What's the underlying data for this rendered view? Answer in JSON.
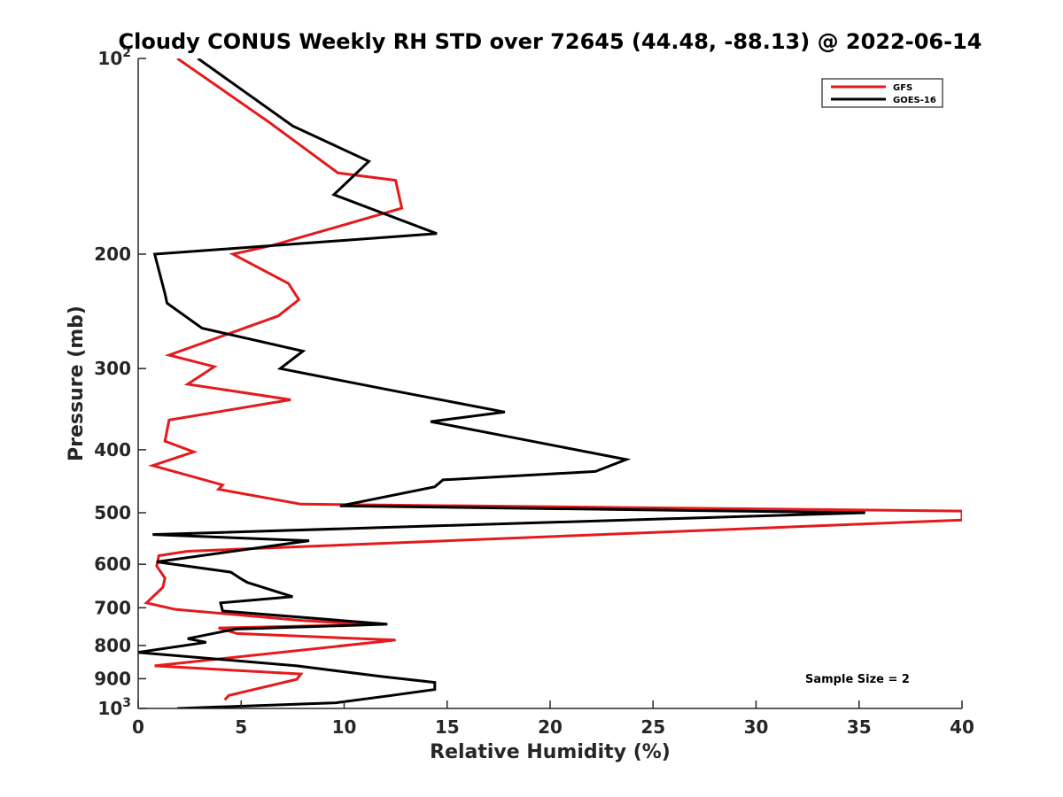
{
  "chart_data": {
    "type": "line",
    "title": "Cloudy CONUS Weekly RH STD over 72645 (44.48, -88.13) @ 2022-06-14",
    "xlabel": "Relative Humidity (%)",
    "ylabel": "Pressure (mb)",
    "xlim": [
      0,
      40
    ],
    "ylim": [
      100,
      1000
    ],
    "y_scale": "log",
    "y_reversed": true,
    "grid": false,
    "legend_position": "top-right",
    "x_ticks": [
      0,
      5,
      10,
      15,
      20,
      25,
      30,
      35,
      40
    ],
    "x_tick_labels": [
      "0",
      "5",
      "10",
      "15",
      "20",
      "25",
      "30",
      "35",
      "40"
    ],
    "y_ticks": [
      100,
      200,
      300,
      400,
      500,
      600,
      700,
      800,
      900,
      1000
    ],
    "y_tick_labels": [
      {
        "base": "10",
        "exp": "2"
      },
      {
        "base": "200"
      },
      {
        "base": "300"
      },
      {
        "base": "400"
      },
      {
        "base": "500"
      },
      {
        "base": "600"
      },
      {
        "base": "700"
      },
      {
        "base": "800"
      },
      {
        "base": "900"
      },
      {
        "base": "10",
        "exp": "3"
      }
    ],
    "annotation": "Sample Size = 2",
    "series": [
      {
        "name": "GFS",
        "color": "#e41a1c",
        "points": [
          [
            1.9,
            100
          ],
          [
            6.3,
            125
          ],
          [
            9.7,
            150
          ],
          [
            12.5,
            154
          ],
          [
            12.8,
            170
          ],
          [
            9.3,
            183
          ],
          [
            6.5,
            194
          ],
          [
            4.6,
            200
          ],
          [
            7.3,
            222
          ],
          [
            7.8,
            235
          ],
          [
            6.8,
            249
          ],
          [
            1.5,
            286
          ],
          [
            3.7,
            298
          ],
          [
            2.4,
            317
          ],
          [
            7.4,
            335
          ],
          [
            1.5,
            360
          ],
          [
            1.3,
            388
          ],
          [
            2.7,
            403
          ],
          [
            0.7,
            423
          ],
          [
            4.1,
            453
          ],
          [
            3.9,
            460
          ],
          [
            7.9,
            485
          ],
          [
            40.0,
            497
          ],
          [
            40.0,
            513
          ],
          [
            2.4,
            573
          ],
          [
            1.0,
            582
          ],
          [
            0.9,
            604
          ],
          [
            1.3,
            630
          ],
          [
            1.2,
            651
          ],
          [
            0.4,
            688
          ],
          [
            1.8,
            704
          ],
          [
            7.9,
            732
          ],
          [
            11.3,
            743
          ],
          [
            3.9,
            752
          ],
          [
            4.8,
            767
          ],
          [
            12.5,
            785
          ],
          [
            0.8,
            860
          ],
          [
            7.9,
            885
          ],
          [
            7.7,
            902
          ],
          [
            4.4,
            955
          ],
          [
            4.2,
            970
          ]
        ]
      },
      {
        "name": "GOES-16",
        "color": "#000000",
        "points": [
          [
            2.9,
            100
          ],
          [
            7.5,
            127
          ],
          [
            11.2,
            144
          ],
          [
            9.5,
            162
          ],
          [
            14.5,
            186
          ],
          [
            0.8,
            200
          ],
          [
            1.3,
            230
          ],
          [
            1.4,
            238
          ],
          [
            3.1,
            260
          ],
          [
            8.0,
            282
          ],
          [
            6.9,
            300
          ],
          [
            12.5,
            325
          ],
          [
            17.8,
            350
          ],
          [
            14.2,
            362
          ],
          [
            18.0,
            382
          ],
          [
            23.7,
            414
          ],
          [
            22.2,
            432
          ],
          [
            14.8,
            445
          ],
          [
            14.4,
            456
          ],
          [
            9.8,
            488
          ],
          [
            35.3,
            500
          ],
          [
            0.7,
            540
          ],
          [
            8.3,
            552
          ],
          [
            0.9,
            595
          ],
          [
            4.5,
            617
          ],
          [
            5.0,
            632
          ],
          [
            5.3,
            640
          ],
          [
            7.5,
            673
          ],
          [
            4.0,
            688
          ],
          [
            4.1,
            708
          ],
          [
            12.1,
            742
          ],
          [
            4.7,
            755
          ],
          [
            2.4,
            781
          ],
          [
            3.3,
            791
          ],
          [
            0.0,
            820
          ],
          [
            7.7,
            860
          ],
          [
            11.8,
            893
          ],
          [
            14.4,
            912
          ],
          [
            14.4,
            935
          ],
          [
            12.3,
            955
          ],
          [
            9.6,
            980
          ],
          [
            1.9,
            1000
          ]
        ]
      }
    ]
  }
}
